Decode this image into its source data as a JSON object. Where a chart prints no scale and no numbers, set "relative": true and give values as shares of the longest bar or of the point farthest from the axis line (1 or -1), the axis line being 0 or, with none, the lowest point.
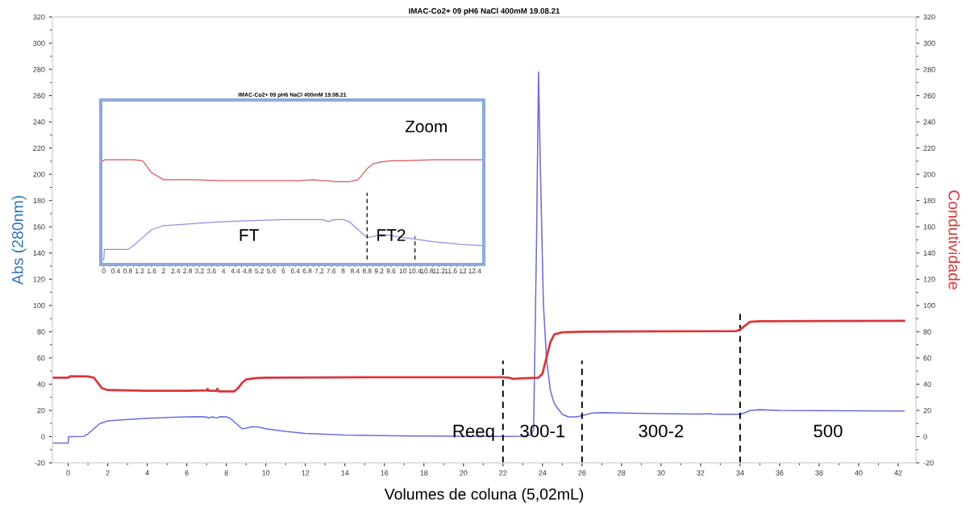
{
  "chart_data": [
    {
      "type": "line",
      "title": "IMAC-Co2+ 09 pH6 NaCl 400mM 19.08.21",
      "xlabel": "Volumes de coluna (5,02mL)",
      "ylabel": "Abs (280nm)",
      "y2label": "Condutividade",
      "xlim": [
        -0.8,
        42.9
      ],
      "xticks": [
        0,
        2,
        4,
        6,
        8,
        10,
        12,
        14,
        16,
        18,
        20,
        22,
        24,
        26,
        28,
        30,
        32,
        34,
        36,
        38,
        40,
        42
      ],
      "ylim": [
        -20,
        320
      ],
      "yticks": [
        -20,
        0,
        20,
        40,
        60,
        80,
        100,
        120,
        140,
        160,
        180,
        200,
        220,
        240,
        260,
        280,
        300,
        320
      ],
      "y2lim": [
        -20,
        320
      ],
      "y2ticks": [
        -20,
        0,
        20,
        40,
        60,
        80,
        100,
        120,
        140,
        160,
        180,
        200,
        220,
        240,
        260,
        280,
        300,
        320
      ],
      "grid": false,
      "legend": false,
      "series": [
        {
          "color": "#6b6bdc",
          "x": [
            -0.8,
            0,
            0.02,
            0.8,
            1.0,
            1.3,
            1.6,
            2,
            3,
            4,
            5,
            6,
            6.5,
            7,
            7.1,
            7.3,
            7.5,
            7.7,
            8,
            8.2,
            8.5,
            8.8,
            9.0,
            9.3,
            9.6,
            10,
            11,
            12,
            13,
            14,
            16,
            18,
            20,
            22,
            23,
            23.4,
            23.55,
            23.7,
            23.8,
            23.9,
            24.05,
            24.2,
            24.4,
            24.6,
            25,
            25.3,
            25.7,
            26,
            26.5,
            27,
            28,
            30,
            32,
            32.5,
            32.6,
            33,
            34,
            34.2,
            34.5,
            35,
            36,
            38,
            40,
            42.3
          ],
          "values": [
            -5,
            -5,
            0,
            0.2,
            2,
            6,
            10,
            12,
            13,
            14,
            14.6,
            15,
            15.2,
            15,
            14.3,
            15,
            14.2,
            15.2,
            15,
            14,
            10,
            6,
            6.5,
            7.5,
            7.3,
            6,
            4,
            2.5,
            1.8,
            1.2,
            0.7,
            0.4,
            0.3,
            0.2,
            0.3,
            1,
            5,
            150,
            278,
            200,
            100,
            60,
            35,
            25,
            17,
            15,
            15,
            16,
            18,
            18.3,
            18,
            17.5,
            17.2,
            17.5,
            17.2,
            17,
            17,
            18,
            20,
            20.5,
            20,
            19.8,
            19.6,
            19.5
          ]
        },
        {
          "color": "#d9363a",
          "axis": "y2",
          "x": [
            -0.8,
            0,
            0.1,
            1,
            1.3,
            1.5,
            1.7,
            2,
            4,
            6,
            7,
            7.05,
            7.1,
            7.5,
            7.55,
            7.6,
            8.4,
            8.6,
            8.8,
            9,
            9.5,
            10,
            15,
            22,
            22.3,
            22.5,
            23,
            23.8,
            24,
            24.2,
            24.4,
            24.6,
            25,
            26,
            30,
            33.8,
            34,
            34.2,
            34.5,
            35,
            38,
            42.3
          ],
          "values": [
            45,
            45,
            46,
            45.8,
            45,
            41,
            37,
            35.5,
            35,
            35,
            35.2,
            36.5,
            35,
            35,
            36.5,
            34.5,
            34.5,
            37,
            41,
            43.5,
            44.7,
            45,
            45.2,
            45.2,
            45,
            44,
            44.5,
            45,
            48,
            60,
            72,
            78,
            79.5,
            80,
            80.3,
            80.5,
            81.5,
            84,
            87.5,
            88,
            88.2,
            88.3
          ]
        },
        {
          "color": "#000000",
          "line_style": "dashed",
          "x": [
            22,
            22
          ],
          "values": [
            -20,
            58
          ]
        },
        {
          "color": "#000000",
          "line_style": "dashed",
          "x": [
            26,
            26
          ],
          "values": [
            -20,
            58
          ]
        },
        {
          "color": "#000000",
          "line_style": "dashed",
          "x": [
            34,
            34
          ],
          "values": [
            -20,
            95
          ]
        }
      ],
      "annotations": [
        "Reeq",
        "300-1",
        "300-2",
        "500"
      ]
    },
    {
      "type": "line",
      "title": "IMAC-Co2+ 09 pH6 NaCl 400mM 19.08.21",
      "relative": true,
      "tick_labels": "x",
      "xlim": [
        -0.1,
        12.7
      ],
      "xticks": [
        0,
        0.4,
        0.8,
        1.2,
        1.6,
        2,
        2.4,
        2.8,
        3.2,
        3.6,
        4,
        4.4,
        4.8,
        5.2,
        5.6,
        6,
        6.4,
        6.8,
        7.2,
        7.6,
        8,
        8.4,
        8.8,
        9.2,
        9.6,
        10,
        10.4,
        10.8,
        11.2,
        11.6,
        12,
        12.4
      ],
      "grid": false,
      "legend": false,
      "series": [
        {
          "color": "#8f8fe0",
          "x": [
            -0.1,
            0,
            0.02,
            0.8,
            1.0,
            1.3,
            1.6,
            2,
            3,
            4,
            5,
            6,
            6.5,
            7,
            7.3,
            7.5,
            7.7,
            8,
            8.2,
            8.5,
            8.8,
            9.0,
            9.3,
            9.6,
            10,
            11,
            12,
            12.7
          ],
          "values": [
            0,
            0,
            0.1,
            0.1,
            0.14,
            0.22,
            0.3,
            0.34,
            0.36,
            0.38,
            0.39,
            0.4,
            0.4,
            0.4,
            0.4,
            0.38,
            0.4,
            0.4,
            0.38,
            0.3,
            0.22,
            0.23,
            0.25,
            0.24,
            0.22,
            0.18,
            0.15,
            0.14
          ]
        },
        {
          "color": "#d9565a",
          "x": [
            -0.1,
            0,
            0.02,
            0.8,
            1.0,
            1.3,
            1.6,
            2,
            3,
            4,
            5,
            6,
            6.5,
            7,
            7.3,
            7.5,
            7.7,
            8,
            8.2,
            8.5,
            8.8,
            9.0,
            9.3,
            9.6,
            10,
            11,
            12,
            12.7
          ],
          "values": [
            0.99,
            0.99,
            1,
            1,
            1,
            0.99,
            0.87,
            0.8,
            0.8,
            0.79,
            0.79,
            0.79,
            0.79,
            0.8,
            0.79,
            0.79,
            0.78,
            0.78,
            0.78,
            0.8,
            0.91,
            0.96,
            0.98,
            0.99,
            0.99,
            1,
            1,
            1
          ]
        },
        {
          "color": "#000000",
          "line_style": "dashed",
          "x": [
            8.8,
            8.8
          ],
          "values": [
            0,
            0.67
          ]
        },
        {
          "color": "#000000",
          "line_style": "dashed",
          "x": [
            10.4,
            10.4
          ],
          "values": [
            0,
            0.23
          ]
        }
      ],
      "annotations": [
        "FT",
        "FT2",
        "Zoom"
      ]
    }
  ]
}
